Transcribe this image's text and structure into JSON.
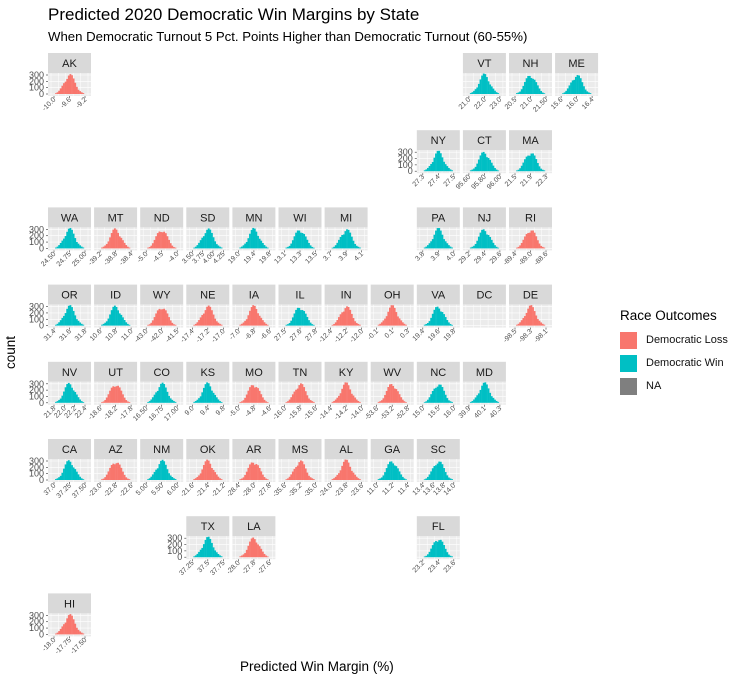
{
  "title": "Predicted 2020 Democratic Win Margins by State",
  "subtitle": "When Democratic Turnout 5 Pct. Points Higher than Democratic Turnout (60-55%)",
  "x_axis_label": "Predicted Win Margin (%)",
  "y_axis_label": "count",
  "legend": {
    "title": "Race Outcomes",
    "items": [
      {
        "label": "Democratic Loss",
        "color": "#F8766D"
      },
      {
        "label": "Democratic Win",
        "color": "#00BFC4"
      },
      {
        "label": "NA",
        "color": "#7F7F7F"
      }
    ]
  },
  "chart_data": {
    "type": "faceted-histogram",
    "y_ticks": [
      "0",
      "100",
      "200",
      "300"
    ],
    "ylim": [
      0,
      300
    ],
    "panels": [
      {
        "label": "AK",
        "row": 0,
        "col": 0,
        "outcome": "Democratic Loss",
        "x_ticks": [
          "-10.0",
          "-9.6",
          "-9.2"
        ],
        "center": -9.8
      },
      {
        "label": "VT",
        "row": 0,
        "col": 9,
        "outcome": "Democratic Win",
        "x_ticks": [
          "21.0",
          "22.0",
          "23.0"
        ],
        "center": 22.0
      },
      {
        "label": "NH",
        "row": 0,
        "col": 10,
        "outcome": "Democratic Win",
        "x_ticks": [
          "20.5",
          "21.0",
          "21.50"
        ],
        "center": 21.0
      },
      {
        "label": "ME",
        "row": 0,
        "col": 11,
        "outcome": "Democratic Win",
        "x_ticks": [
          "15.6",
          "16.0",
          "16.4"
        ],
        "center": 16.0
      },
      {
        "label": "NY",
        "row": 1,
        "col": 8,
        "outcome": "Democratic Win",
        "x_ticks": [
          "27.3",
          "27.4",
          "27.5"
        ],
        "center": 27.4
      },
      {
        "label": "CT",
        "row": 1,
        "col": 9,
        "outcome": "Democratic Win",
        "x_ticks": [
          "95.60",
          "95.80",
          "96.00"
        ],
        "center": 95.8
      },
      {
        "label": "MA",
        "row": 1,
        "col": 10,
        "outcome": "Democratic Win",
        "x_ticks": [
          "21.5",
          "21.9",
          "22.3"
        ],
        "center": 21.9
      },
      {
        "label": "WA",
        "row": 2,
        "col": 0,
        "outcome": "Democratic Win",
        "x_ticks": [
          "24.50",
          "24.75",
          "25.00"
        ],
        "center": 24.75
      },
      {
        "label": "MT",
        "row": 2,
        "col": 1,
        "outcome": "Democratic Loss",
        "x_ticks": [
          "-39.2",
          "-38.8",
          "-38.4"
        ],
        "center": -38.8
      },
      {
        "label": "ND",
        "row": 2,
        "col": 2,
        "outcome": "Democratic Loss",
        "x_ticks": [
          "-5.0",
          "-4.5",
          "-4.0"
        ],
        "center": -4.5
      },
      {
        "label": "SD",
        "row": 2,
        "col": 3,
        "outcome": "Democratic Win",
        "x_ticks": [
          "3.50",
          "3.75",
          "4.00",
          "4.25"
        ],
        "center": 3.85
      },
      {
        "label": "MN",
        "row": 2,
        "col": 4,
        "outcome": "Democratic Win",
        "x_ticks": [
          "19.0",
          "19.4",
          "19.8"
        ],
        "center": 19.4
      },
      {
        "label": "WI",
        "row": 2,
        "col": 5,
        "outcome": "Democratic Win",
        "x_ticks": [
          "13.1",
          "13.3",
          "13.5"
        ],
        "center": 13.3
      },
      {
        "label": "MI",
        "row": 2,
        "col": 6,
        "outcome": "Democratic Win",
        "x_ticks": [
          "3.7",
          "3.9",
          "4.1"
        ],
        "center": 3.9
      },
      {
        "label": "PA",
        "row": 2,
        "col": 8,
        "outcome": "Democratic Win",
        "x_ticks": [
          "3.8",
          "3.9",
          "4.0"
        ],
        "center": 3.9
      },
      {
        "label": "NJ",
        "row": 2,
        "col": 9,
        "outcome": "Democratic Win",
        "x_ticks": [
          "29.2",
          "29.4",
          "29.6"
        ],
        "center": 29.4
      },
      {
        "label": "RI",
        "row": 2,
        "col": 10,
        "outcome": "Democratic Loss",
        "x_ticks": [
          "-89.4",
          "-89.0",
          "-88.6"
        ],
        "center": -89.0
      },
      {
        "label": "OR",
        "row": 3,
        "col": 0,
        "outcome": "Democratic Win",
        "x_ticks": [
          "31.4",
          "31.6",
          "31.8"
        ],
        "center": 31.6
      },
      {
        "label": "ID",
        "row": 3,
        "col": 1,
        "outcome": "Democratic Win",
        "x_ticks": [
          "10.6",
          "10.8",
          "11.0"
        ],
        "center": 10.8
      },
      {
        "label": "WY",
        "row": 3,
        "col": 2,
        "outcome": "Democratic Loss",
        "x_ticks": [
          "-43.0",
          "-42.0",
          "-41.5"
        ],
        "center": -42.3
      },
      {
        "label": "NE",
        "row": 3,
        "col": 3,
        "outcome": "Democratic Loss",
        "x_ticks": [
          "-17.4",
          "-17.2",
          "-17.0"
        ],
        "center": -17.2
      },
      {
        "label": "IA",
        "row": 3,
        "col": 4,
        "outcome": "Democratic Loss",
        "x_ticks": [
          "-7.0",
          "-6.8",
          "-6.6"
        ],
        "center": -6.8
      },
      {
        "label": "IL",
        "row": 3,
        "col": 5,
        "outcome": "Democratic Win",
        "x_ticks": [
          "27.5",
          "27.6",
          "27.8"
        ],
        "center": 27.65
      },
      {
        "label": "IN",
        "row": 3,
        "col": 6,
        "outcome": "Democratic Loss",
        "x_ticks": [
          "-12.4",
          "-12.2",
          "-12.0"
        ],
        "center": -12.2
      },
      {
        "label": "OH",
        "row": 3,
        "col": 7,
        "outcome": "Democratic Loss",
        "x_ticks": [
          "-0.1",
          "0.1",
          "0.3"
        ],
        "center": 0.0
      },
      {
        "label": "VA",
        "row": 3,
        "col": 8,
        "outcome": "Democratic Win",
        "x_ticks": [
          "19.4",
          "19.6",
          "19.8"
        ],
        "center": 19.6
      },
      {
        "label": "DC",
        "row": 3,
        "col": 9,
        "outcome": "NA",
        "x_ticks": [],
        "center": null
      },
      {
        "label": "DE",
        "row": 3,
        "col": 10,
        "outcome": "Democratic Loss",
        "x_ticks": [
          "-98.5",
          "-98.3",
          "-98.1"
        ],
        "center": -98.3
      },
      {
        "label": "NV",
        "row": 4,
        "col": 0,
        "outcome": "Democratic Win",
        "x_ticks": [
          "21.8",
          "22.0",
          "22.2",
          "22.4"
        ],
        "center": 22.1
      },
      {
        "label": "UT",
        "row": 4,
        "col": 1,
        "outcome": "Democratic Loss",
        "x_ticks": [
          "-18.6",
          "-18.2",
          "-17.8"
        ],
        "center": -18.2
      },
      {
        "label": "CO",
        "row": 4,
        "col": 2,
        "outcome": "Democratic Win",
        "x_ticks": [
          "16.50",
          "16.75",
          "17.00"
        ],
        "center": 16.75
      },
      {
        "label": "KS",
        "row": 4,
        "col": 3,
        "outcome": "Democratic Win",
        "x_ticks": [
          "9.0",
          "9.4",
          "9.8"
        ],
        "center": 9.4
      },
      {
        "label": "MO",
        "row": 4,
        "col": 4,
        "outcome": "Democratic Loss",
        "x_ticks": [
          "-5.0",
          "-4.8",
          "-4.6"
        ],
        "center": -4.8
      },
      {
        "label": "TN",
        "row": 4,
        "col": 5,
        "outcome": "Democratic Loss",
        "x_ticks": [
          "-16.0",
          "-15.8",
          "-15.6"
        ],
        "center": -15.8
      },
      {
        "label": "KY",
        "row": 4,
        "col": 6,
        "outcome": "Democratic Loss",
        "x_ticks": [
          "-14.4",
          "-14.2",
          "-14.0"
        ],
        "center": -14.2
      },
      {
        "label": "WV",
        "row": 4,
        "col": 7,
        "outcome": "Democratic Loss",
        "x_ticks": [
          "-53.6",
          "-53.2",
          "-52.8"
        ],
        "center": -53.2
      },
      {
        "label": "NC",
        "row": 4,
        "col": 8,
        "outcome": "Democratic Win",
        "x_ticks": [
          "15.0",
          "15.5",
          "16.0"
        ],
        "center": 15.5
      },
      {
        "label": "MD",
        "row": 4,
        "col": 9,
        "outcome": "Democratic Win",
        "x_ticks": [
          "39.9",
          "40.1",
          "40.3"
        ],
        "center": 40.1
      },
      {
        "label": "CA",
        "row": 5,
        "col": 0,
        "outcome": "Democratic Win",
        "x_ticks": [
          "37.0",
          "37.25",
          "37.50"
        ],
        "center": 37.25
      },
      {
        "label": "AZ",
        "row": 5,
        "col": 1,
        "outcome": "Democratic Loss",
        "x_ticks": [
          "-23.0",
          "-22.8",
          "-22.6"
        ],
        "center": -22.8
      },
      {
        "label": "NM",
        "row": 5,
        "col": 2,
        "outcome": "Democratic Win",
        "x_ticks": [
          "5.00",
          "5.50",
          "6.00"
        ],
        "center": 5.5
      },
      {
        "label": "OK",
        "row": 5,
        "col": 3,
        "outcome": "Democratic Loss",
        "x_ticks": [
          "-21.6",
          "-21.4",
          "-21.2"
        ],
        "center": -21.4
      },
      {
        "label": "AR",
        "row": 5,
        "col": 4,
        "outcome": "Democratic Loss",
        "x_ticks": [
          "-28.4",
          "-28.0",
          "-27.8"
        ],
        "center": -28.1
      },
      {
        "label": "MS",
        "row": 5,
        "col": 5,
        "outcome": "Democratic Loss",
        "x_ticks": [
          "-35.6",
          "-35.2",
          "-35.0"
        ],
        "center": -35.3
      },
      {
        "label": "AL",
        "row": 5,
        "col": 6,
        "outcome": "Democratic Loss",
        "x_ticks": [
          "-24.0",
          "-23.8",
          "-23.6"
        ],
        "center": -23.8
      },
      {
        "label": "GA",
        "row": 5,
        "col": 7,
        "outcome": "Democratic Win",
        "x_ticks": [
          "11.0",
          "11.2",
          "11.4"
        ],
        "center": 11.2
      },
      {
        "label": "SC",
        "row": 5,
        "col": 8,
        "outcome": "Democratic Win",
        "x_ticks": [
          "13.4",
          "13.6",
          "13.8",
          "14.0"
        ],
        "center": 13.7
      },
      {
        "label": "TX",
        "row": 6,
        "col": 3,
        "outcome": "Democratic Win",
        "x_ticks": [
          "37.25",
          "37.5",
          "37.75"
        ],
        "center": 37.5
      },
      {
        "label": "LA",
        "row": 6,
        "col": 4,
        "outcome": "Democratic Loss",
        "x_ticks": [
          "-28.0",
          "-27.8",
          "-27.6"
        ],
        "center": -27.8
      },
      {
        "label": "FL",
        "row": 6,
        "col": 8,
        "outcome": "Democratic Win",
        "x_ticks": [
          "23.2",
          "23.4",
          "23.6"
        ],
        "center": 23.4
      },
      {
        "label": "HI",
        "row": 7,
        "col": 0,
        "outcome": "Democratic Loss",
        "x_ticks": [
          "-18.0",
          "-17.75",
          "-17.50"
        ],
        "center": -17.8
      }
    ]
  }
}
